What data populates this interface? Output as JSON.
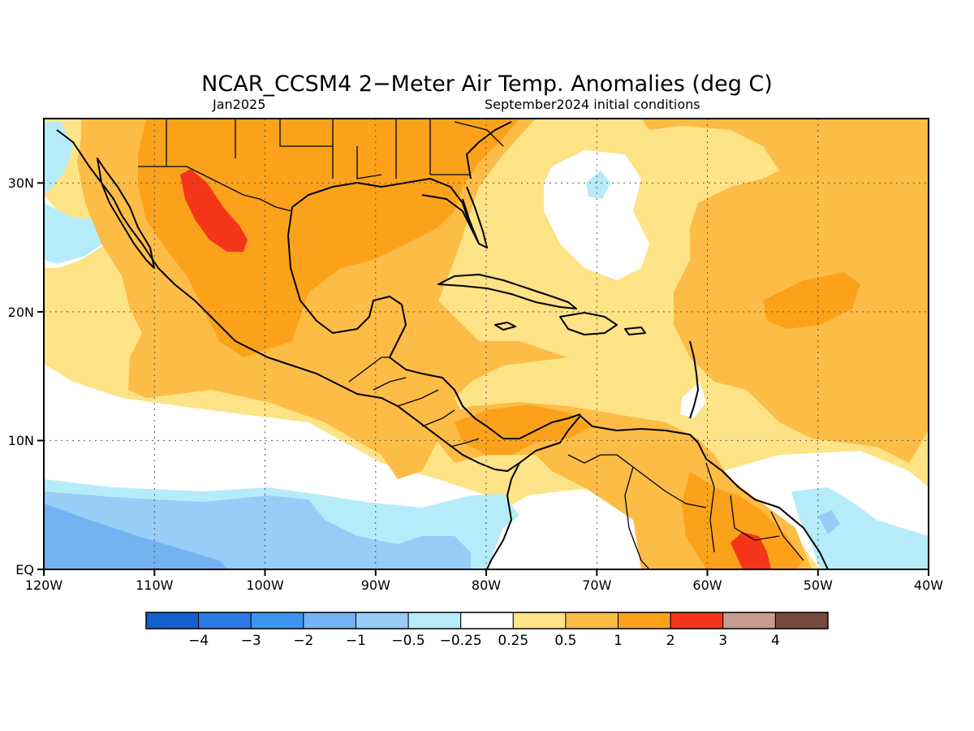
{
  "title": "NCAR_CCSM4 2−Meter Air Temp. Anomalies (deg C)",
  "subtitle_left": "Jan2025",
  "subtitle_right": "September2024 initial conditions",
  "x_ticks": [
    "120W",
    "110W",
    "100W",
    "90W",
    "80W",
    "70W",
    "60W",
    "50W",
    "40W"
  ],
  "y_ticks": [
    "30N",
    "20N",
    "10N",
    "EQ"
  ],
  "colorbar": {
    "colors": [
      "#1560d0",
      "#2a7ae6",
      "#3c95f0",
      "#75b2f2",
      "#97cdf7",
      "#b6ecf9",
      "#ffffff",
      "#fee387",
      "#fcbc45",
      "#fba21a",
      "#f5351a",
      "#c69c90",
      "#764a40"
    ],
    "labels": [
      "−4",
      "−3",
      "−2",
      "−1",
      "−0.5",
      "−0.25",
      "0.25",
      "0.5",
      "1",
      "2",
      "3",
      "4"
    ]
  },
  "chart_data": {
    "type": "heatmap",
    "title": "NCAR_CCSM4 2−Meter Air Temp. Anomalies (deg C)",
    "subtitle": "Jan2025 — September2024 initial conditions",
    "lon_range": [
      -120,
      -40
    ],
    "lat_range": [
      0,
      35
    ],
    "grid": true,
    "levels": [
      -4,
      -3,
      -2,
      -1,
      -0.5,
      -0.25,
      0.25,
      0.5,
      1,
      2,
      3,
      4
    ],
    "features": [
      {
        "region": "northern Mexico plateau",
        "anomaly_range": [
          2,
          3
        ]
      },
      {
        "region": "Gulf of Mexico / central Mexico",
        "anomaly_range": [
          1,
          2
        ]
      },
      {
        "region": "southeastern United States",
        "anomaly_range": [
          1,
          2
        ]
      },
      {
        "region": "central Atlantic near 22N 52W",
        "anomaly_range": [
          1,
          2
        ]
      },
      {
        "region": "Guianas / NE South America",
        "anomaly_range": [
          2,
          3
        ]
      },
      {
        "region": "eastern Caribbean",
        "anomaly_range": [
          0.25,
          0.5
        ]
      },
      {
        "region": "eastern equatorial Pacific",
        "anomaly_range": [
          -1,
          -0.25
        ]
      }
    ]
  }
}
